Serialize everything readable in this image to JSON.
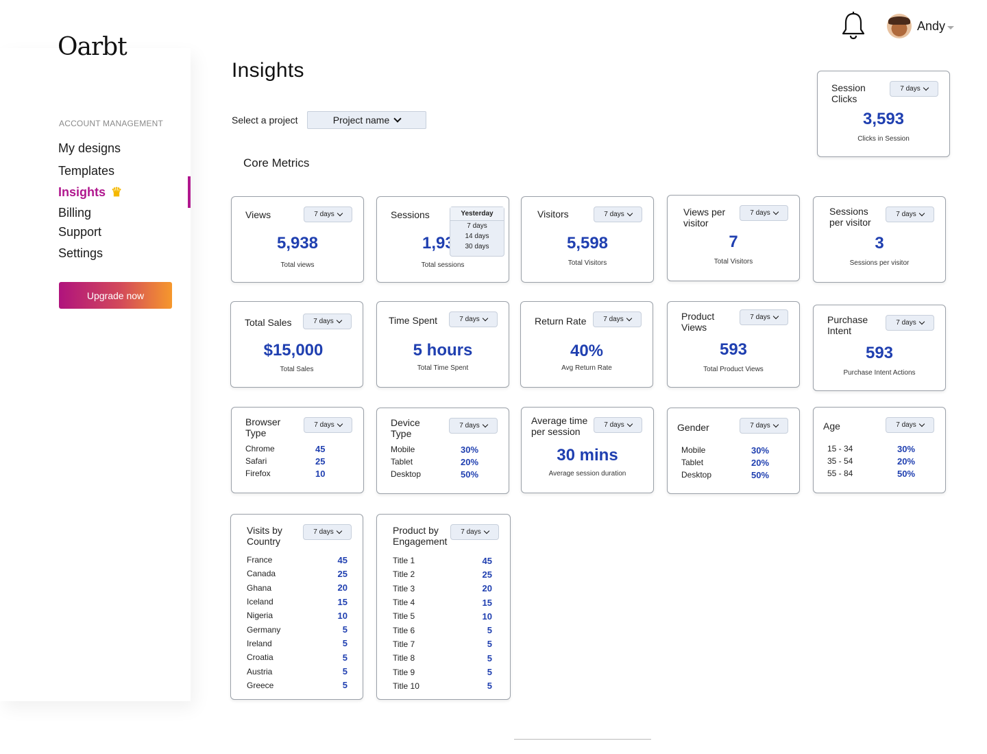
{
  "app": {
    "logo": "Oarbt"
  },
  "sidebar": {
    "section_label": "ACCOUNT MANAGEMENT",
    "items": [
      {
        "label": "My designs"
      },
      {
        "label": "Templates"
      },
      {
        "label": "Insights",
        "active": true
      },
      {
        "label": "Billing"
      },
      {
        "label": "Support"
      },
      {
        "label": "Settings"
      }
    ],
    "upgrade_label": "Upgrade now",
    "crown_icon": "crown-icon"
  },
  "header": {
    "user_name": "Andy",
    "bell_icon": "bell-icon"
  },
  "page": {
    "title": "Insights",
    "select_label": "Select a project",
    "project_value": "Project name",
    "section_title": "Core Metrics"
  },
  "colors": {
    "accent": "#b0178e",
    "value_blue": "#1f3fb0",
    "dropdown_bg": "#e9eef6"
  },
  "cards": {
    "session_clicks": {
      "title": "Session Clicks",
      "range": "7 days",
      "value": "3,593",
      "sub": "Clicks in Session"
    },
    "views": {
      "title": "Views",
      "range": "7 days",
      "value": "5,938",
      "sub": "Total views"
    },
    "sessions": {
      "title": "Sessions",
      "value": "1,93",
      "sub": "Total sessions",
      "dropdown_options": [
        "Yesterday",
        "7 days",
        "14 days",
        "30 days"
      ]
    },
    "visitors": {
      "title": "Visitors",
      "range": "7 days",
      "value": "5,598",
      "sub": "Total Visitors"
    },
    "views_per_visitor": {
      "title": "Views per visitor",
      "range": "7 days",
      "value": "7",
      "sub": "Total Visitors"
    },
    "sessions_per_visitor": {
      "title": "Sessions per visitor",
      "range": "7 days",
      "value": "3",
      "sub": "Sessions per visitor"
    },
    "total_sales": {
      "title": "Total Sales",
      "range": "7 days",
      "value": "$15,000",
      "sub": "Total Sales"
    },
    "time_spent": {
      "title": "Time Spent",
      "range": "7 days",
      "value": "5 hours",
      "sub": "Total Time Spent"
    },
    "return_rate": {
      "title": "Return Rate",
      "range": "7 days",
      "value": "40%",
      "sub": "Avg Return Rate"
    },
    "product_views": {
      "title": "Product Views",
      "range": "7 days",
      "value": "593",
      "sub": "Total Product Views"
    },
    "purchase_intent": {
      "title": "Purchase Intent",
      "range": "7 days",
      "value": "593",
      "sub": "Purchase Intent Actions"
    },
    "browser_type": {
      "title": "Browser Type",
      "range": "7 days",
      "rows": [
        {
          "label": "Chrome",
          "value": "45"
        },
        {
          "label": "Safari",
          "value": "25"
        },
        {
          "label": "Firefox",
          "value": "10"
        }
      ]
    },
    "device_type": {
      "title": "Device Type",
      "range": "7 days",
      "rows": [
        {
          "label": "Mobile",
          "value": "30%"
        },
        {
          "label": "Tablet",
          "value": "20%"
        },
        {
          "label": "Desktop",
          "value": "50%"
        }
      ]
    },
    "avg_time": {
      "title": "Average time per session",
      "range": "7 days",
      "value": "30 mins",
      "sub": "Average session duration"
    },
    "gender": {
      "title": "Gender",
      "range": "7 days",
      "rows": [
        {
          "label": "Mobile",
          "value": "30%"
        },
        {
          "label": "Tablet",
          "value": "20%"
        },
        {
          "label": "Desktop",
          "value": "50%"
        }
      ]
    },
    "age": {
      "title": "Age",
      "range": "7 days",
      "rows": [
        {
          "label": "15 - 34",
          "value": "30%"
        },
        {
          "label": "35 - 54",
          "value": "20%"
        },
        {
          "label": "55 - 84",
          "value": "50%"
        }
      ]
    },
    "visits_by_country": {
      "title": "Visits by Country",
      "range": "7 days",
      "rows": [
        {
          "label": "France",
          "value": "45"
        },
        {
          "label": "Canada",
          "value": "25"
        },
        {
          "label": "Ghana",
          "value": "20"
        },
        {
          "label": "Iceland",
          "value": "15"
        },
        {
          "label": "Nigeria",
          "value": "10"
        },
        {
          "label": "Germany",
          "value": "5"
        },
        {
          "label": "Ireland",
          "value": "5"
        },
        {
          "label": "Croatia",
          "value": "5"
        },
        {
          "label": "Austria",
          "value": "5"
        },
        {
          "label": "Greece",
          "value": "5"
        }
      ]
    },
    "product_engagement": {
      "title": "Product by Engagement",
      "range": "7 days",
      "rows": [
        {
          "label": "Title 1",
          "value": "45"
        },
        {
          "label": "Title 2",
          "value": "25"
        },
        {
          "label": "Title 3",
          "value": "20"
        },
        {
          "label": "Title 4",
          "value": "15"
        },
        {
          "label": "Title 5",
          "value": "10"
        },
        {
          "label": "Title 6",
          "value": "5"
        },
        {
          "label": "Title 7",
          "value": "5"
        },
        {
          "label": "Title 8",
          "value": "5"
        },
        {
          "label": "Title 9",
          "value": "5"
        },
        {
          "label": "Title 10",
          "value": "5"
        }
      ]
    }
  }
}
